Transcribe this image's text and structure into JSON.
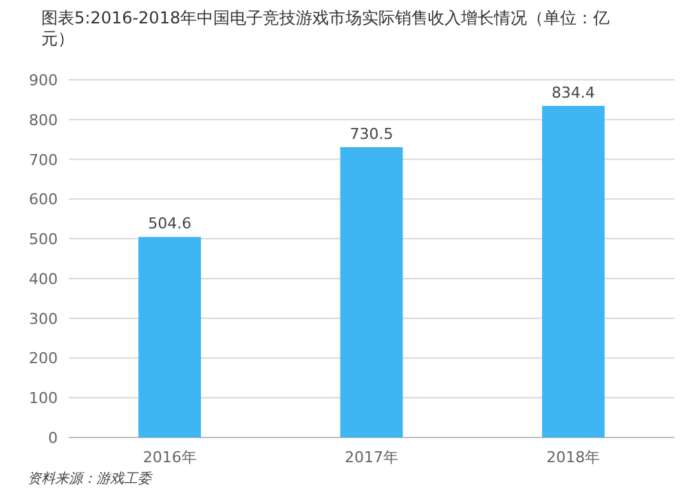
{
  "chart_data": {
    "type": "bar",
    "title": "图表5:2016-2018年中国电子竞技游戏市场实际销售收入增长情况（单位：亿元）",
    "categories": [
      "2016年",
      "2017年",
      "2018年"
    ],
    "values": [
      504.6,
      730.5,
      834.4
    ],
    "color": "#3fb5f4",
    "ylim": [
      0,
      900
    ],
    "yticks": [
      0,
      100,
      200,
      300,
      400,
      500,
      600,
      700,
      800,
      900
    ],
    "grid": "y",
    "data_labels": true,
    "annotations": [
      "资料来源：游戏工委"
    ]
  }
}
